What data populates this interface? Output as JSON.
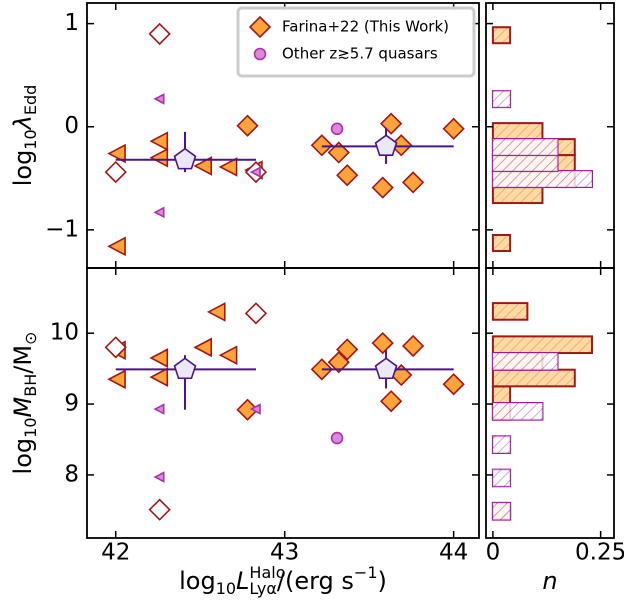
{
  "chart_data": [
    {
      "type": "scatter",
      "ylabel": [
        {
          "text": "log"
        },
        {
          "text": "10",
          "style": "sub"
        },
        {
          "text": "λ",
          "style": "italic"
        },
        {
          "text": "Edd",
          "style": "sub"
        }
      ],
      "xlim": [
        41.83,
        44.15
      ],
      "ylim": [
        -1.37,
        1.2
      ],
      "yticks": [
        {
          "value": -1,
          "label": "−1"
        },
        0,
        1
      ],
      "legend": "upper right",
      "series": [
        {
          "name": "Farina+22 (This Work)",
          "marker": "diamond",
          "color": "#ffa43a",
          "edgecolor": "#a01818",
          "x": [
            42.78,
            43.22,
            43.32,
            43.37,
            43.58,
            43.63,
            43.69,
            43.76,
            44.0
          ],
          "values": [
            0.01,
            -0.18,
            -0.25,
            -0.47,
            -0.59,
            0.03,
            -0.18,
            -0.54,
            -0.02
          ]
        },
        {
          "marker": "triangle-left",
          "color": "#ffa43a",
          "edgecolor": "#a01818",
          "x": [
            42.01,
            42.01,
            42.26,
            42.26,
            42.52,
            42.67,
            42.82
          ],
          "values": [
            -0.26,
            -1.16,
            -0.14,
            -0.3,
            -0.38,
            -0.39,
            -0.42
          ]
        },
        {
          "marker": "diamond",
          "color": "#ffffff",
          "edgecolor": "#a01818",
          "x": [
            42.26,
            42.0,
            42.83
          ],
          "values": [
            0.9,
            -0.44,
            -0.44
          ]
        },
        {
          "marker": "triangle-left-small",
          "color": "#dd88dd",
          "edgecolor": "#aa33aa",
          "x": [
            42.26,
            42.26,
            42.83
          ],
          "values": [
            0.27,
            -0.83,
            -0.44
          ]
        },
        {
          "name": "Other z≳5.7 quasars",
          "marker": "circle",
          "color": "#dd88dd",
          "edgecolor": "#aa33aa",
          "x": [
            43.31
          ],
          "values": [
            -0.02
          ]
        },
        {
          "marker": "pentagon",
          "color": "#ebe8f7",
          "edgecolor": "#4a148c",
          "x": [
            42.41,
            43.6
          ],
          "values": [
            -0.32,
            -0.19
          ],
          "xlow": [
            42.0,
            43.22
          ],
          "xhigh": [
            42.83,
            44.0
          ],
          "ylow": [
            -0.44,
            -0.36
          ],
          "yhigh": [
            -0.05,
            -0.01
          ]
        }
      ]
    },
    {
      "type": "scatter",
      "xlabel": [
        {
          "text": "log"
        },
        {
          "text": "10",
          "style": "sub"
        },
        {
          "text": "L",
          "style": "italic"
        },
        {
          "text": "Halo",
          "style": "sup"
        },
        {
          "text": "Lyα",
          "style": "sub",
          "stack": true
        },
        {
          "text": "/(erg s"
        },
        {
          "text": "−1",
          "style": "sup"
        },
        {
          "text": ")"
        }
      ],
      "ylabel": [
        {
          "text": "log"
        },
        {
          "text": "10",
          "style": "sub"
        },
        {
          "text": "M",
          "style": "italic"
        },
        {
          "text": "BH",
          "style": "sub"
        },
        {
          "text": "/M"
        },
        {
          "text": "⊙",
          "style": "sub"
        }
      ],
      "xlim": [
        41.83,
        44.15
      ],
      "ylim": [
        7.11,
        10.92
      ],
      "xticks": [
        42,
        43,
        44
      ],
      "yticks": [
        8,
        9,
        10
      ],
      "series": [
        {
          "marker": "diamond",
          "color": "#ffa43a",
          "edgecolor": "#a01818",
          "x": [
            42.78,
            43.22,
            43.32,
            43.37,
            43.58,
            43.63,
            43.69,
            43.76,
            44.0
          ],
          "values": [
            8.92,
            9.49,
            9.59,
            9.77,
            9.86,
            9.04,
            9.41,
            9.82,
            9.28
          ]
        },
        {
          "marker": "triangle-left",
          "color": "#ffa43a",
          "edgecolor": "#a01818",
          "x": [
            42.01,
            42.01,
            42.26,
            42.26,
            42.52,
            42.6,
            42.67
          ],
          "values": [
            9.76,
            9.35,
            9.65,
            9.38,
            9.8,
            10.3,
            9.69
          ]
        },
        {
          "marker": "diamond",
          "color": "#ffffff",
          "edgecolor": "#a01818",
          "x": [
            42.0,
            42.83,
            42.26
          ],
          "values": [
            9.8,
            10.28,
            7.51
          ]
        },
        {
          "marker": "triangle-left-small",
          "color": "#dd88dd",
          "edgecolor": "#aa33aa",
          "x": [
            42.26,
            42.26,
            42.83
          ],
          "values": [
            8.93,
            7.97,
            8.93
          ]
        },
        {
          "marker": "circle",
          "color": "#dd88dd",
          "edgecolor": "#aa33aa",
          "x": [
            43.31
          ],
          "values": [
            8.52
          ]
        },
        {
          "marker": "pentagon",
          "color": "#ebe8f7",
          "edgecolor": "#4a148c",
          "x": [
            42.41,
            43.6
          ],
          "values": [
            9.49,
            9.49
          ],
          "xlow": [
            42.0,
            43.22
          ],
          "xhigh": [
            42.83,
            44.0
          ],
          "ylow": [
            8.92,
            9.22
          ],
          "yhigh": [
            9.69,
            9.76
          ]
        }
      ]
    },
    {
      "type": "histogram",
      "orientation": "horizontal",
      "xlim": [
        -0.016,
        0.281
      ],
      "ylim": [
        -1.37,
        1.2
      ],
      "bins": [
        -1.205,
        -1.05,
        -0.895,
        -0.74,
        -0.585,
        -0.43,
        -0.275,
        -0.12,
        0.035,
        0.19,
        0.345,
        0.5,
        0.655,
        0.81,
        0.965
      ],
      "series": [
        {
          "color": "#ffa43a",
          "edgecolor": "#a01818",
          "values": [
            0.04,
            0,
            0,
            0.115,
            0.19,
            0.19,
            0.19,
            0.115,
            0,
            0,
            0,
            0,
            0,
            0.04
          ]
        },
        {
          "color": "#c040c0",
          "edgecolor": "#9a1a9a",
          "values": [
            0,
            0,
            0,
            0,
            0.23,
            0.15,
            0.15,
            0,
            0,
            0.04,
            0,
            0,
            0,
            0
          ]
        }
      ]
    },
    {
      "type": "histogram",
      "orientation": "horizontal",
      "xlabel": [
        {
          "text": "n",
          "style": "italic"
        }
      ],
      "xlim": [
        -0.016,
        0.281
      ],
      "ylim": [
        7.11,
        10.92
      ],
      "xticks": [
        0,
        0.25
      ],
      "bins": [
        7.37,
        7.605,
        7.84,
        8.075,
        8.31,
        8.545,
        8.78,
        9.015,
        9.25,
        9.485,
        9.72,
        9.955,
        10.19,
        10.425
      ],
      "series": [
        {
          "color": "#ffa43a",
          "edgecolor": "#a01818",
          "values": [
            0.04,
            0,
            0,
            0,
            0,
            0,
            0.04,
            0.04,
            0.19,
            0.115,
            0.23,
            0,
            0.08
          ]
        },
        {
          "color": "#c040c0",
          "edgecolor": "#9a1a9a",
          "values": [
            0.04,
            0,
            0.04,
            0,
            0.04,
            0,
            0.115,
            0,
            0,
            0.15,
            0,
            0,
            0
          ]
        }
      ]
    }
  ]
}
